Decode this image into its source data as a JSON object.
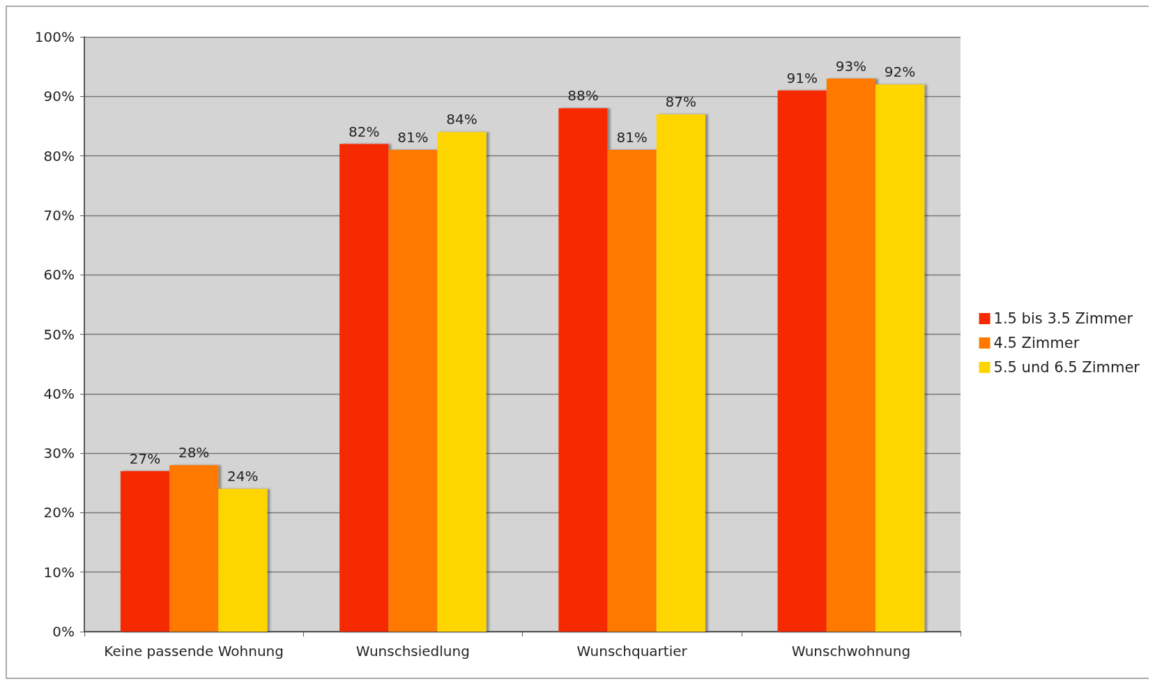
{
  "chart_data": {
    "type": "bar",
    "categories": [
      "Keine passende Wohnung",
      "Wunschsiedlung",
      "Wunschquartier",
      "Wunschwohnung"
    ],
    "series": [
      {
        "name": "1.5 bis 3.5 Zimmer",
        "color": "#f52a00",
        "values": [
          27,
          82,
          88,
          91
        ],
        "value_labels": [
          "27%",
          "82%",
          "88%",
          "91%"
        ]
      },
      {
        "name": "4.5 Zimmer",
        "color": "#ff7800",
        "values": [
          28,
          81,
          81,
          93
        ],
        "value_labels": [
          "28%",
          "81%",
          "81%",
          "93%"
        ]
      },
      {
        "name": "5.5 und 6.5 Zimmer",
        "color": "#ffd500",
        "values": [
          24,
          84,
          87,
          92
        ],
        "value_labels": [
          "24%",
          "84%",
          "87%",
          "92%"
        ]
      }
    ],
    "ylim": [
      0,
      100
    ],
    "yticks": [
      {
        "value": 0,
        "label": "0%"
      },
      {
        "value": 10,
        "label": "10%"
      },
      {
        "value": 20,
        "label": "20%"
      },
      {
        "value": 30,
        "label": "30%"
      },
      {
        "value": 40,
        "label": "40%"
      },
      {
        "value": 50,
        "label": "50%"
      },
      {
        "value": 60,
        "label": "60%"
      },
      {
        "value": 70,
        "label": "70%"
      },
      {
        "value": 80,
        "label": "80%"
      },
      {
        "value": 90,
        "label": "90%"
      },
      {
        "value": 100,
        "label": "100%"
      }
    ],
    "grid": "y",
    "legend": "right"
  }
}
